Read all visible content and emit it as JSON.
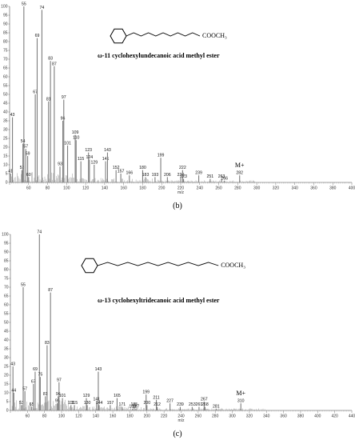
{
  "chart_data": [
    {
      "type": "bar",
      "panel_label": "(b)",
      "title": "ω-11 cyclohexylundecanoic acid methyl ester",
      "formula": "COOCH₃",
      "xlabel": "m/z",
      "ylabel": "",
      "xlim": [
        40,
        400
      ],
      "ylim": [
        0,
        100
      ],
      "x_ticks": [
        60,
        80,
        100,
        120,
        140,
        160,
        180,
        200,
        220,
        240,
        260,
        280,
        300,
        320,
        340,
        360,
        380,
        400
      ],
      "y_ticks": [
        0,
        5,
        10,
        15,
        20,
        25,
        30,
        35,
        40,
        45,
        50,
        55,
        60,
        65,
        70,
        75,
        80,
        85,
        90,
        95,
        100
      ],
      "molecular_ion_label": "M+",
      "peaks": [
        {
          "x": 41,
          "y": 5,
          "label": "41"
        },
        {
          "x": 43,
          "y": 37,
          "label": "43"
        },
        {
          "x": 53,
          "y": 7,
          "label": "53"
        },
        {
          "x": 54,
          "y": 22,
          "label": "54"
        },
        {
          "x": 55,
          "y": 100,
          "label": "55"
        },
        {
          "x": 57,
          "y": 19,
          "label": "57"
        },
        {
          "x": 59,
          "y": 15,
          "label": "59"
        },
        {
          "x": 60,
          "y": 3,
          "label": "60"
        },
        {
          "x": 67,
          "y": 50,
          "label": "67"
        },
        {
          "x": 69,
          "y": 82,
          "label": "69"
        },
        {
          "x": 74,
          "y": 98,
          "label": "74"
        },
        {
          "x": 81,
          "y": 46,
          "label": "81"
        },
        {
          "x": 83,
          "y": 69,
          "label": "83"
        },
        {
          "x": 87,
          "y": 66,
          "label": "87"
        },
        {
          "x": 93,
          "y": 9,
          "label": "93"
        },
        {
          "x": 96,
          "y": 35,
          "label": "96"
        },
        {
          "x": 97,
          "y": 47,
          "label": "97"
        },
        {
          "x": 101,
          "y": 21,
          "label": "101"
        },
        {
          "x": 109,
          "y": 27,
          "label": "109"
        },
        {
          "x": 110,
          "y": 24,
          "label": "110"
        },
        {
          "x": 115,
          "y": 12,
          "label": "115"
        },
        {
          "x": 123,
          "y": 17,
          "label": "123"
        },
        {
          "x": 124,
          "y": 13,
          "label": "124"
        },
        {
          "x": 129,
          "y": 10,
          "label": "129"
        },
        {
          "x": 141,
          "y": 12,
          "label": "141"
        },
        {
          "x": 143,
          "y": 17,
          "label": "143"
        },
        {
          "x": 152,
          "y": 7,
          "label": "152"
        },
        {
          "x": 157,
          "y": 5,
          "label": "157"
        },
        {
          "x": 166,
          "y": 4,
          "label": "166"
        },
        {
          "x": 180,
          "y": 7,
          "label": "180"
        },
        {
          "x": 183,
          "y": 3,
          "label": "183"
        },
        {
          "x": 193,
          "y": 3,
          "label": "193"
        },
        {
          "x": 199,
          "y": 14,
          "label": "199"
        },
        {
          "x": 206,
          "y": 3,
          "label": "206"
        },
        {
          "x": 220,
          "y": 3,
          "label": "220"
        },
        {
          "x": 222,
          "y": 7,
          "label": "222"
        },
        {
          "x": 223,
          "y": 2,
          "label": "223"
        },
        {
          "x": 239,
          "y": 4,
          "label": "239"
        },
        {
          "x": 251,
          "y": 2,
          "label": "251"
        },
        {
          "x": 263,
          "y": 2,
          "label": "263"
        },
        {
          "x": 266,
          "y": 1,
          "label": "266"
        },
        {
          "x": 282,
          "y": 4,
          "label": "282"
        }
      ]
    },
    {
      "type": "bar",
      "panel_label": "(c)",
      "title": "ω-13 cyclohexyltridecanoic acid methyl ester",
      "formula": "COOCH₃",
      "xlabel": "m/z",
      "ylabel": "",
      "xlim": [
        40,
        440
      ],
      "ylim": [
        0,
        100
      ],
      "x_ticks": [
        60,
        80,
        100,
        120,
        140,
        160,
        180,
        200,
        220,
        240,
        260,
        280,
        300,
        320,
        340,
        360,
        380,
        400,
        420,
        440
      ],
      "y_ticks": [
        0,
        5,
        10,
        15,
        20,
        25,
        30,
        35,
        40,
        45,
        50,
        55,
        60,
        65,
        70,
        75,
        80,
        85,
        90,
        95,
        100
      ],
      "molecular_ion_label": "M+",
      "peaks": [
        {
          "x": 43,
          "y": 25,
          "label": "43"
        },
        {
          "x": 44,
          "y": 10,
          "label": "44"
        },
        {
          "x": 53,
          "y": 3,
          "label": "53"
        },
        {
          "x": 55,
          "y": 70,
          "label": "55"
        },
        {
          "x": 57,
          "y": 11,
          "label": "57"
        },
        {
          "x": 65,
          "y": 2,
          "label": "65"
        },
        {
          "x": 67,
          "y": 15,
          "label": "67"
        },
        {
          "x": 69,
          "y": 22,
          "label": "69"
        },
        {
          "x": 74,
          "y": 100,
          "label": "74"
        },
        {
          "x": 75,
          "y": 19,
          "label": "75"
        },
        {
          "x": 81,
          "y": 8,
          "label": "81"
        },
        {
          "x": 83,
          "y": 37,
          "label": "83"
        },
        {
          "x": 87,
          "y": 67,
          "label": "87"
        },
        {
          "x": 95,
          "y": 4,
          "label": "95"
        },
        {
          "x": 96,
          "y": 8,
          "label": "96"
        },
        {
          "x": 97,
          "y": 16,
          "label": "97"
        },
        {
          "x": 101,
          "y": 7,
          "label": "101"
        },
        {
          "x": 111,
          "y": 3,
          "label": "111"
        },
        {
          "x": 115,
          "y": 3,
          "label": "115"
        },
        {
          "x": 129,
          "y": 7,
          "label": "129"
        },
        {
          "x": 130,
          "y": 3,
          "label": "130"
        },
        {
          "x": 141,
          "y": 5,
          "label": "141"
        },
        {
          "x": 143,
          "y": 22,
          "label": "143"
        },
        {
          "x": 144,
          "y": 3,
          "label": "144"
        },
        {
          "x": 157,
          "y": 3,
          "label": "157"
        },
        {
          "x": 165,
          "y": 7,
          "label": "165"
        },
        {
          "x": 171,
          "y": 2,
          "label": "171"
        },
        {
          "x": 183,
          "y": 1,
          "label": "183"
        },
        {
          "x": 185,
          "y": 2,
          "label": "185"
        },
        {
          "x": 187,
          "y": 1,
          "label": "187"
        },
        {
          "x": 199,
          "y": 9,
          "label": "199"
        },
        {
          "x": 200,
          "y": 3,
          "label": "200"
        },
        {
          "x": 211,
          "y": 6,
          "label": "211"
        },
        {
          "x": 212,
          "y": 2,
          "label": "212"
        },
        {
          "x": 227,
          "y": 4,
          "label": "227"
        },
        {
          "x": 239,
          "y": 2,
          "label": "239"
        },
        {
          "x": 253,
          "y": 2,
          "label": "253"
        },
        {
          "x": 261,
          "y": 2,
          "label": "261"
        },
        {
          "x": 267,
          "y": 5,
          "label": "267"
        },
        {
          "x": 268,
          "y": 2,
          "label": "268"
        },
        {
          "x": 281,
          "y": 1,
          "label": "281"
        },
        {
          "x": 310,
          "y": 4,
          "label": "310"
        }
      ]
    }
  ]
}
